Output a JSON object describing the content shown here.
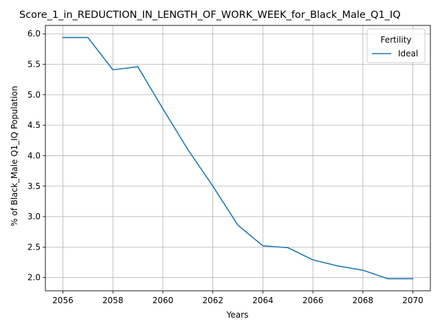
{
  "chart_data": {
    "type": "line",
    "title": "Score_1_in_REDUCTION_IN_LENGTH_OF_WORK_WEEK_for_Black_Male_Q1_IQ",
    "xlabel": "Years",
    "ylabel": "% of Black_Male Q1_IQ Population",
    "x": [
      2056,
      2057,
      2058,
      2059,
      2060,
      2061,
      2062,
      2063,
      2064,
      2065,
      2066,
      2067,
      2068,
      2069,
      2070
    ],
    "series": [
      {
        "name": "Ideal",
        "color": "#1f77b4",
        "values": [
          5.94,
          5.94,
          5.41,
          5.46,
          4.77,
          4.1,
          3.5,
          2.86,
          2.52,
          2.49,
          2.29,
          2.19,
          2.12,
          1.98,
          1.98
        ]
      }
    ],
    "xticks": [
      2056,
      2058,
      2060,
      2062,
      2064,
      2066,
      2068,
      2070
    ],
    "xtick_labels": [
      "2056",
      "2058",
      "2060",
      "2062",
      "2064",
      "2066",
      "2068",
      "2070"
    ],
    "yticks": [
      2.0,
      2.5,
      3.0,
      3.5,
      4.0,
      4.5,
      5.0,
      5.5,
      6.0
    ],
    "ytick_labels": [
      "2.0",
      "2.5",
      "3.0",
      "3.5",
      "4.0",
      "4.5",
      "5.0",
      "5.5",
      "6.0"
    ],
    "xlim": [
      2055.3,
      2070.7
    ],
    "ylim": [
      1.782,
      6.138
    ],
    "grid": true,
    "legend": {
      "title": "Fertility",
      "position": "top-right"
    }
  }
}
